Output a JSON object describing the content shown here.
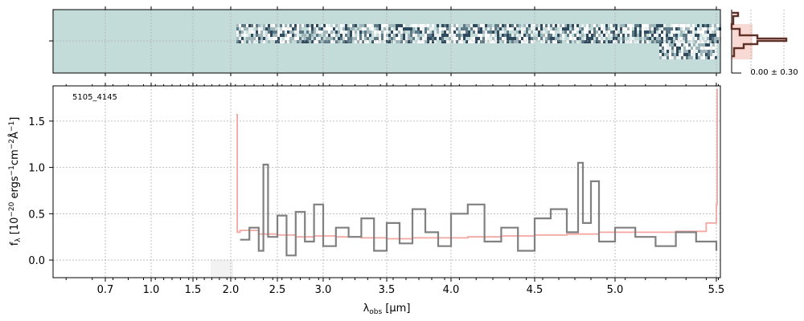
{
  "chart_data": [
    {
      "type": "heatmap",
      "panel": "2D spectrum",
      "description": "",
      "background_color": "#c3dbd9",
      "x_start_um": 2.06,
      "x_end_um": 5.52
    },
    {
      "type": "line",
      "panel": "1D spectrum",
      "object_label": "5105_4145",
      "ylabel": "f_λ [10^-20 ergs^-1cm^-2Å^-1]",
      "xlabel": "λ_obs [μm]",
      "x_ticks": [
        0.7,
        1.0,
        1.5,
        2.0,
        2.5,
        3.0,
        3.5,
        4.0,
        4.5,
        5.0,
        5.5
      ],
      "x_tick_labels": [
        "0.7",
        "1.0",
        "1.5",
        "2.0",
        "2.5",
        "3.0",
        "3.5",
        "4.0",
        "4.5",
        "5.0",
        "5.5"
      ],
      "y_ticks": [
        0.0,
        0.5,
        1.0,
        1.5
      ],
      "y_tick_labels": [
        "0.0",
        "0.5",
        "1.0",
        "1.5"
      ],
      "ylim": [
        -0.19,
        1.88
      ],
      "grid": true,
      "series": [
        {
          "color": "#808080",
          "x": [
            2.1,
            2.2,
            2.3,
            2.35,
            2.4,
            2.5,
            2.6,
            2.7,
            2.8,
            2.9,
            3.0,
            3.1,
            3.2,
            3.3,
            3.4,
            3.5,
            3.6,
            3.7,
            3.8,
            3.9,
            4.0,
            4.1,
            4.2,
            4.3,
            4.4,
            4.5,
            4.6,
            4.7,
            4.77,
            4.8,
            4.85,
            4.9,
            5.0,
            5.1,
            5.2,
            5.3,
            5.4,
            5.5
          ],
          "values": [
            0.22,
            0.35,
            0.1,
            1.03,
            0.25,
            0.48,
            0.05,
            0.52,
            0.2,
            0.6,
            0.15,
            0.35,
            0.25,
            0.45,
            0.1,
            0.4,
            0.18,
            0.55,
            0.3,
            0.15,
            0.5,
            0.6,
            0.2,
            0.35,
            0.1,
            0.45,
            0.55,
            0.3,
            1.05,
            0.4,
            0.85,
            0.2,
            0.35,
            0.25,
            0.15,
            0.3,
            0.2,
            0.1
          ]
        },
        {
          "color": "#f4a6a0",
          "x": [
            2.06,
            2.07,
            2.1,
            2.3,
            2.5,
            2.7,
            2.9,
            3.1,
            3.3,
            3.5,
            3.7,
            3.9,
            4.1,
            4.3,
            4.5,
            4.7,
            4.9,
            5.1,
            5.3,
            5.45,
            5.5,
            5.52
          ],
          "values": [
            1.57,
            0.3,
            0.32,
            0.28,
            0.27,
            0.25,
            0.26,
            0.25,
            0.24,
            0.23,
            0.24,
            0.24,
            0.25,
            0.26,
            0.27,
            0.28,
            0.3,
            0.3,
            0.31,
            0.4,
            0.6,
            1.85
          ]
        }
      ]
    },
    {
      "type": "line",
      "panel": "profile",
      "annotation": "0.00 ± 0.30"
    }
  ]
}
